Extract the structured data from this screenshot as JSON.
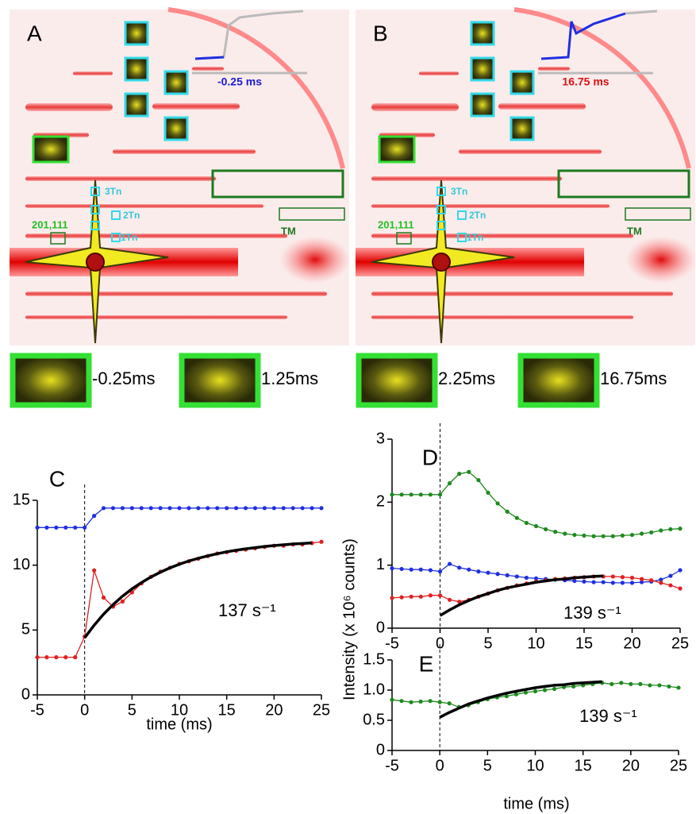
{
  "images": [
    {
      "panel": "A",
      "time": "-0.25 ms",
      "time_color": "#1a1ad6",
      "reflections": [
        "3Tn",
        "2Tn",
        "1Tn"
      ],
      "index": "201,111",
      "region": "TM"
    },
    {
      "panel": "B",
      "time": "16.75 ms",
      "time_color": "#e01010",
      "reflections": [
        "3Tn",
        "2Tn",
        "1Tn"
      ],
      "index": "201,111",
      "region": "TM"
    }
  ],
  "thumbnails": [
    "-0.25ms",
    "1.25ms",
    "2.25ms",
    "16.75ms"
  ],
  "chart_data": [
    {
      "type": "line",
      "panel": "C",
      "x_label": "time (ms)",
      "annotation": "137 s⁻¹",
      "x": [
        -5,
        -4,
        -3,
        -2,
        -1,
        0,
        1,
        2,
        3,
        4,
        5,
        6,
        7,
        8,
        9,
        10,
        11,
        12,
        13,
        14,
        15,
        16,
        17,
        18,
        19,
        20,
        21,
        22,
        23,
        24,
        25
      ],
      "xlim": [
        -5,
        25
      ],
      "xticks": [
        -5,
        0,
        5,
        10,
        15,
        20,
        25
      ],
      "ylim": [
        0,
        15
      ],
      "yticks": [
        0,
        5,
        10,
        15
      ],
      "vline": 0,
      "series": [
        {
          "color": "#1f2fe0",
          "markers": true,
          "values": [
            12.9,
            12.9,
            12.9,
            12.9,
            12.9,
            12.9,
            13.8,
            14.4,
            14.4,
            14.4,
            14.4,
            14.4,
            14.4,
            14.4,
            14.4,
            14.4,
            14.4,
            14.4,
            14.4,
            14.4,
            14.4,
            14.4,
            14.4,
            14.4,
            14.4,
            14.4,
            14.4,
            14.4,
            14.4,
            14.4,
            14.4
          ]
        },
        {
          "color": "#e02020",
          "markers": true,
          "values": [
            2.9,
            2.9,
            2.9,
            2.9,
            2.9,
            4.5,
            9.6,
            7.5,
            6.8,
            7.2,
            7.9,
            8.6,
            9.1,
            9.5,
            9.8,
            10.1,
            10.3,
            10.5,
            10.7,
            10.9,
            11.0,
            11.1,
            11.2,
            11.3,
            11.4,
            11.5,
            11.5,
            11.6,
            11.6,
            11.7,
            11.8
          ]
        },
        {
          "color": "#000000",
          "markers": false,
          "values": [
            null,
            null,
            null,
            null,
            null,
            4.4,
            5.37,
            6.22,
            6.96,
            7.61,
            8.17,
            8.66,
            9.09,
            9.46,
            9.79,
            10.07,
            10.32,
            10.53,
            10.72,
            10.88,
            11.03,
            11.15,
            11.26,
            11.35,
            11.44,
            11.51,
            11.57,
            11.63,
            11.67,
            11.72,
            null
          ]
        }
      ]
    },
    {
      "type": "line",
      "panel": "D",
      "y_label": "Intensity (x 10⁶ counts)",
      "annotation": "139 s⁻¹",
      "x": [
        -5,
        -4,
        -3,
        -2,
        -1,
        0,
        1,
        2,
        3,
        4,
        5,
        6,
        7,
        8,
        9,
        10,
        11,
        12,
        13,
        14,
        15,
        16,
        17,
        18,
        19,
        20,
        21,
        22,
        23,
        24,
        25
      ],
      "xlim": [
        -5,
        25
      ],
      "xticks": [
        -5,
        0,
        5,
        10,
        15,
        20,
        25
      ],
      "ylim": [
        0,
        3
      ],
      "yticks": [
        0,
        1,
        2,
        3
      ],
      "vline": 0,
      "series": [
        {
          "color": "#1e8a1e",
          "markers": true,
          "values": [
            2.12,
            2.12,
            2.12,
            2.12,
            2.12,
            2.12,
            2.3,
            2.45,
            2.48,
            2.35,
            2.15,
            1.98,
            1.85,
            1.75,
            1.67,
            1.62,
            1.57,
            1.53,
            1.5,
            1.48,
            1.47,
            1.46,
            1.46,
            1.46,
            1.47,
            1.48,
            1.5,
            1.52,
            1.55,
            1.57,
            1.58
          ]
        },
        {
          "color": "#1f2fe0",
          "markers": true,
          "values": [
            0.95,
            0.94,
            0.93,
            0.93,
            0.92,
            0.9,
            1.02,
            0.96,
            0.93,
            0.9,
            0.88,
            0.86,
            0.84,
            0.82,
            0.8,
            0.79,
            0.78,
            0.77,
            0.76,
            0.75,
            0.74,
            0.73,
            0.73,
            0.72,
            0.72,
            0.72,
            0.73,
            0.74,
            0.77,
            0.83,
            0.92
          ]
        },
        {
          "color": "#e02020",
          "markers": true,
          "values": [
            0.48,
            0.49,
            0.5,
            0.5,
            0.52,
            0.52,
            0.45,
            0.42,
            0.45,
            0.5,
            0.55,
            0.6,
            0.64,
            0.68,
            0.71,
            0.74,
            0.76,
            0.78,
            0.79,
            0.8,
            0.81,
            0.82,
            0.82,
            0.82,
            0.81,
            0.8,
            0.78,
            0.76,
            0.72,
            0.68,
            0.63
          ]
        },
        {
          "color": "#000000",
          "markers": false,
          "values": [
            null,
            null,
            null,
            null,
            null,
            0.2,
            0.29,
            0.37,
            0.44,
            0.5,
            0.55,
            0.6,
            0.64,
            0.67,
            0.7,
            0.73,
            0.75,
            0.77,
            0.78,
            0.8,
            0.81,
            0.82,
            0.83,
            null,
            null,
            null,
            null,
            null,
            null,
            null,
            null
          ]
        }
      ]
    },
    {
      "type": "line",
      "panel": "E",
      "x_label": "time (ms)",
      "annotation": "139 s⁻¹",
      "x": [
        -5,
        -4,
        -3,
        -2,
        -1,
        0,
        1,
        2,
        3,
        4,
        5,
        6,
        7,
        8,
        9,
        10,
        11,
        12,
        13,
        14,
        15,
        16,
        17,
        18,
        19,
        20,
        21,
        22,
        23,
        24,
        25
      ],
      "xlim": [
        -5,
        25
      ],
      "xticks": [
        -5,
        0,
        5,
        10,
        15,
        20,
        25
      ],
      "ylim": [
        0,
        1.5
      ],
      "yticks": [
        0,
        0.5,
        {
          "value": 1,
          "label": "1.0"
        },
        1.5
      ],
      "vline": 0,
      "series": [
        {
          "color": "#1e8a1e",
          "markers": true,
          "values": [
            0.84,
            0.82,
            0.8,
            0.81,
            0.82,
            0.8,
            0.78,
            0.72,
            0.75,
            0.8,
            0.85,
            0.88,
            0.9,
            0.93,
            0.96,
            0.98,
            1.0,
            1.02,
            1.05,
            1.06,
            1.08,
            1.1,
            1.12,
            1.1,
            1.12,
            1.1,
            1.1,
            1.08,
            1.08,
            1.06,
            1.04
          ]
        },
        {
          "color": "#000000",
          "markers": false,
          "values": [
            null,
            null,
            null,
            null,
            null,
            0.55,
            0.63,
            0.7,
            0.77,
            0.82,
            0.87,
            0.91,
            0.95,
            0.98,
            1.01,
            1.04,
            1.06,
            1.08,
            1.09,
            1.11,
            1.12,
            1.13,
            1.14,
            null,
            null,
            null,
            null,
            null,
            null,
            null,
            null
          ]
        }
      ]
    }
  ]
}
